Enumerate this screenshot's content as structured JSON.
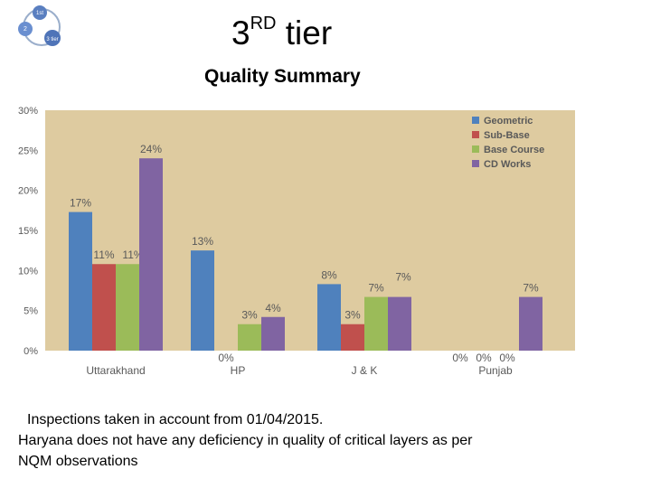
{
  "slide": {
    "title_main": "3",
    "title_sup": "RD",
    "title_rest": " tier",
    "subtitle": "Quality Summary",
    "logo_labels": [
      "1st",
      "2",
      "3 tier"
    ],
    "notes": [
      "Inspections taken in account from 01/04/2015.",
      "Haryana does not have any deficiency in quality of critical layers as per",
      "NQM observations"
    ]
  },
  "chart_data": {
    "type": "bar",
    "title": "",
    "xlabel": "",
    "ylabel": "",
    "ylim": [
      0,
      30
    ],
    "yticks": [
      "0%",
      "5%",
      "10%",
      "15%",
      "20%",
      "25%",
      "30%"
    ],
    "grid": false,
    "legend": "top-right",
    "categories": [
      "Uttarakhand",
      "HP",
      "J & K",
      "Punjab"
    ],
    "series": [
      {
        "name": "Geometric",
        "color": "#4f81bd",
        "values": [
          17.3,
          12.5,
          8.3,
          0
        ],
        "labels": [
          "17%",
          "13%",
          "8%",
          "0%"
        ]
      },
      {
        "name": "Sub-Base",
        "color": "#c0504d",
        "values": [
          10.8,
          0,
          3.3,
          0
        ],
        "labels": [
          "11%",
          "0%",
          "3%",
          "0%"
        ]
      },
      {
        "name": "Base Course",
        "color": "#9bbb59",
        "values": [
          10.8,
          3.3,
          6.7,
          0
        ],
        "labels": [
          "11%",
          "3%",
          "7%",
          "0%"
        ]
      },
      {
        "name": "CD Works",
        "color": "#8064a2",
        "values": [
          24.0,
          4.2,
          6.7,
          6.7
        ],
        "labels": [
          "24%",
          "4%",
          "7%",
          "7%"
        ]
      }
    ],
    "plot_background": "#decba0",
    "label_color": "#595959"
  }
}
